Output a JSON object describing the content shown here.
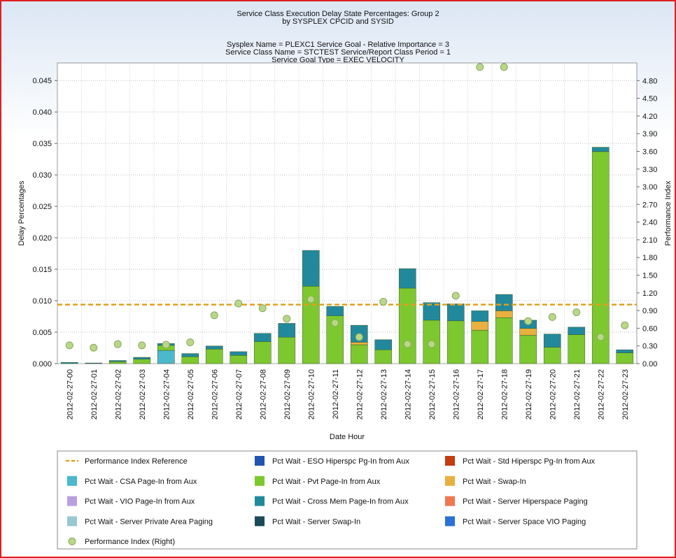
{
  "chart_data": {
    "type": "bar",
    "stacked": true,
    "title": [
      "Service Class Execution Delay State Percentages: Group 2",
      "by SYSPLEX CPCID and SYSID"
    ],
    "subtitle": [
      "Sysplex Name = PLEXC1  Service Goal - Relative Importance = 3",
      "Service Class Name = STCTEST  Service/Report Class Period = 1",
      "Service Goal Type = EXEC VELOCITY"
    ],
    "xlabel": "Date Hour",
    "ylabel": "Delay Percentages",
    "y2label": "Performance Index",
    "categories": [
      "2012-02-27-00",
      "2012-02-27-01",
      "2012-02-27-02",
      "2012-02-27-03",
      "2012-02-27-04",
      "2012-02-27-05",
      "2012-02-27-06",
      "2012-02-27-07",
      "2012-02-27-08",
      "2012-02-27-09",
      "2012-02-27-10",
      "2012-02-27-11",
      "2012-02-27-12",
      "2012-02-27-13",
      "2012-02-27-14",
      "2012-02-27-15",
      "2012-02-27-16",
      "2012-02-27-17",
      "2012-02-27-18",
      "2012-02-27-19",
      "2012-02-27-20",
      "2012-02-27-21",
      "2012-02-27-22",
      "2012-02-27-23"
    ],
    "ylim": [
      0,
      0.0478
    ],
    "y2lim": [
      0,
      5.1
    ],
    "yticks": [
      {
        "value": 0,
        "label": "0.000"
      },
      {
        "value": 0.005,
        "label": "0.005"
      },
      {
        "value": 0.01,
        "label": "0.010"
      },
      {
        "value": 0.015,
        "label": "0.015"
      },
      {
        "value": 0.02,
        "label": "0.020"
      },
      {
        "value": 0.025,
        "label": "0.025"
      },
      {
        "value": 0.03,
        "label": "0.030"
      },
      {
        "value": 0.035,
        "label": "0.035"
      },
      {
        "value": 0.04,
        "label": "0.040"
      },
      {
        "value": 0.045,
        "label": "0.045"
      }
    ],
    "y2ticks": [
      {
        "value": 0,
        "label": "0.00"
      },
      {
        "value": 0.3,
        "label": "0.30"
      },
      {
        "value": 0.6,
        "label": "0.60"
      },
      {
        "value": 0.9,
        "label": "0.90"
      },
      {
        "value": 1.2,
        "label": "1.20"
      },
      {
        "value": 1.5,
        "label": "1.50"
      },
      {
        "value": 1.8,
        "label": "1.80"
      },
      {
        "value": 2.1,
        "label": "2.10"
      },
      {
        "value": 2.4,
        "label": "2.40"
      },
      {
        "value": 2.7,
        "label": "2.70"
      },
      {
        "value": 3,
        "label": "3.00"
      },
      {
        "value": 3.3,
        "label": "3.30"
      },
      {
        "value": 3.6,
        "label": "3.60"
      },
      {
        "value": 3.9,
        "label": "3.90"
      },
      {
        "value": 4.2,
        "label": "4.20"
      },
      {
        "value": 4.5,
        "label": "4.50"
      },
      {
        "value": 4.8,
        "label": "4.80"
      }
    ],
    "grid": true,
    "reference_line": {
      "name": "Performance Index Reference",
      "value": 1.0,
      "color": "#e0a020",
      "axis": "y2"
    },
    "series": [
      {
        "name": "Pct Wait - ESO Hiperspc Pg-In from Aux",
        "color": "#2255b0",
        "values": [
          0,
          0.0001,
          0,
          0,
          0,
          0,
          0,
          0,
          0,
          0,
          0,
          0,
          0,
          0,
          0,
          0,
          0,
          0,
          0,
          0,
          0,
          0,
          0,
          0
        ]
      },
      {
        "name": "Pct Wait - Std Hiperspc Pg-In from Aux",
        "color": "#c43c10",
        "values": [
          0,
          0,
          0,
          0,
          0,
          0,
          0,
          0,
          0,
          0,
          0,
          0,
          0,
          0,
          0,
          0,
          0,
          0,
          0,
          0,
          0,
          0,
          0,
          0
        ]
      },
      {
        "name": "Pct Wait - CSA Page-In from Aux",
        "color": "#4bb8cc",
        "values": [
          0,
          0,
          0,
          0,
          0.0021,
          0,
          0,
          0,
          0,
          0,
          0,
          0,
          0,
          0,
          0,
          0,
          0,
          0,
          0,
          0,
          0,
          0,
          0,
          0
        ]
      },
      {
        "name": "Pct Wait - Pvt Page-In from Aux",
        "color": "#7dc82f",
        "values": [
          0,
          0,
          0.0003,
          0.0007,
          0.0008,
          0.0011,
          0.0023,
          0.0013,
          0.0035,
          0.0042,
          0.0123,
          0.0076,
          0.003,
          0.0022,
          0.012,
          0.0069,
          0.0068,
          0.0053,
          0.0073,
          0.0045,
          0.0026,
          0.0046,
          0.0337,
          0.0017
        ]
      },
      {
        "name": "Pct Wait - Swap-In",
        "color": "#e8b040",
        "values": [
          0,
          0,
          0,
          0,
          0,
          0,
          0,
          0,
          0,
          0,
          0,
          0,
          0.0004,
          0,
          0,
          0,
          0,
          0.0014,
          0.0011,
          0.0011,
          0,
          0,
          0,
          0
        ]
      },
      {
        "name": "Pct Wait - VIO Page-In from Aux",
        "color": "#b8a0e0",
        "values": [
          0,
          0,
          0,
          0,
          0,
          0,
          0,
          0,
          0,
          0,
          0,
          0,
          0,
          0,
          0,
          0,
          0,
          0,
          0,
          0,
          0,
          0,
          0,
          0
        ]
      },
      {
        "name": "Pct Wait - Cross Mem Page-In from Aux",
        "color": "#22899c",
        "values": [
          0.0002,
          0,
          0.0002,
          0.0003,
          0.0003,
          0.0005,
          0.0005,
          0.0006,
          0.0013,
          0.0022,
          0.0057,
          0.0015,
          0.0027,
          0.0016,
          0.0031,
          0.0028,
          0.0027,
          0.0017,
          0.0026,
          0.0013,
          0.0021,
          0.0012,
          0.0007,
          0.0005
        ]
      },
      {
        "name": "Pct Wait - Server Hiperspace Paging",
        "color": "#f07850",
        "values": [
          0,
          0,
          0,
          0,
          0,
          0,
          0,
          0,
          0,
          0,
          0,
          0,
          0,
          0,
          0,
          0,
          0,
          0,
          0,
          0,
          0,
          0,
          0,
          0
        ]
      },
      {
        "name": "Pct Wait - Server Private Area Paging",
        "color": "#98c8d0",
        "values": [
          0,
          0,
          0,
          0,
          0,
          0,
          0,
          0,
          0,
          0,
          0,
          0,
          0,
          0,
          0,
          0,
          0,
          0,
          0,
          0,
          0,
          0,
          0,
          0
        ]
      },
      {
        "name": "Pct Wait - Server Swap-In",
        "color": "#1a4a58",
        "values": [
          0,
          0,
          0,
          0,
          0,
          0,
          0,
          0,
          0,
          0,
          0,
          0,
          0,
          0,
          0,
          0,
          0,
          0,
          0,
          0,
          0,
          0,
          0,
          0
        ]
      },
      {
        "name": "Pct Wait - Server Space VIO Paging",
        "color": "#2a70d8",
        "values": [
          0,
          0,
          0,
          0,
          0,
          0,
          0,
          0,
          0,
          0,
          0,
          0,
          0,
          0,
          0,
          0,
          0,
          0,
          0,
          0,
          0,
          0,
          0,
          0
        ]
      }
    ],
    "pi_series": {
      "name": "Performance Index (Right)",
      "color": "#b8d888",
      "axis": "y2",
      "values": [
        0.31,
        0.27,
        0.33,
        0.31,
        0.32,
        0.36,
        0.82,
        1.02,
        0.94,
        0.76,
        1.09,
        0.69,
        0.45,
        1.05,
        0.33,
        0.33,
        1.15,
        5.03,
        5.03,
        0.72,
        0.79,
        0.87,
        0.45,
        0.65
      ]
    }
  }
}
